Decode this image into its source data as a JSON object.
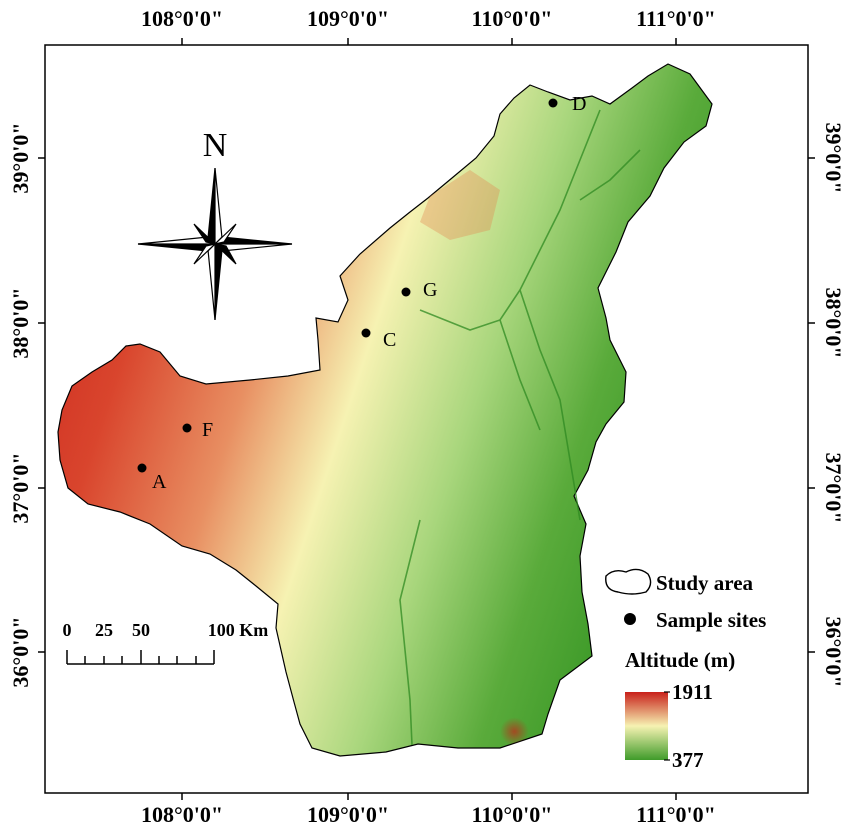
{
  "axes": {
    "top_ticks": [
      "108°0'0\"",
      "109°0'0\"",
      "110°0'0\"",
      "111°0'0\""
    ],
    "bottom_ticks": [
      "108°0'0\"",
      "109°0'0\"",
      "110°0'0\"",
      "111°0'0\""
    ],
    "left_ticks": [
      "39°0'0\"",
      "38°0'0\"",
      "37°0'0\"",
      "36°0'0\""
    ],
    "right_ticks": [
      "39°0'0\"",
      "38°0'0\"",
      "37°0'0\"",
      "36°0'0\""
    ]
  },
  "north_arrow": {
    "label": "N",
    "icon": "compass-rose-icon"
  },
  "scale_bar": {
    "labels": [
      "0",
      "25",
      "50",
      "100 Km"
    ]
  },
  "sample_sites": [
    {
      "label": "D"
    },
    {
      "label": "G"
    },
    {
      "label": "C"
    },
    {
      "label": "F"
    },
    {
      "label": "A"
    }
  ],
  "legend": {
    "study_area": "Study area",
    "sample_sites": "Sample sites",
    "altitude_title": "Altitude (m)",
    "altitude_max": "1911",
    "altitude_min": "377"
  },
  "colors": {
    "high": "#c8201a",
    "mid": "#f6f2b2",
    "low": "#3f9b2a"
  }
}
